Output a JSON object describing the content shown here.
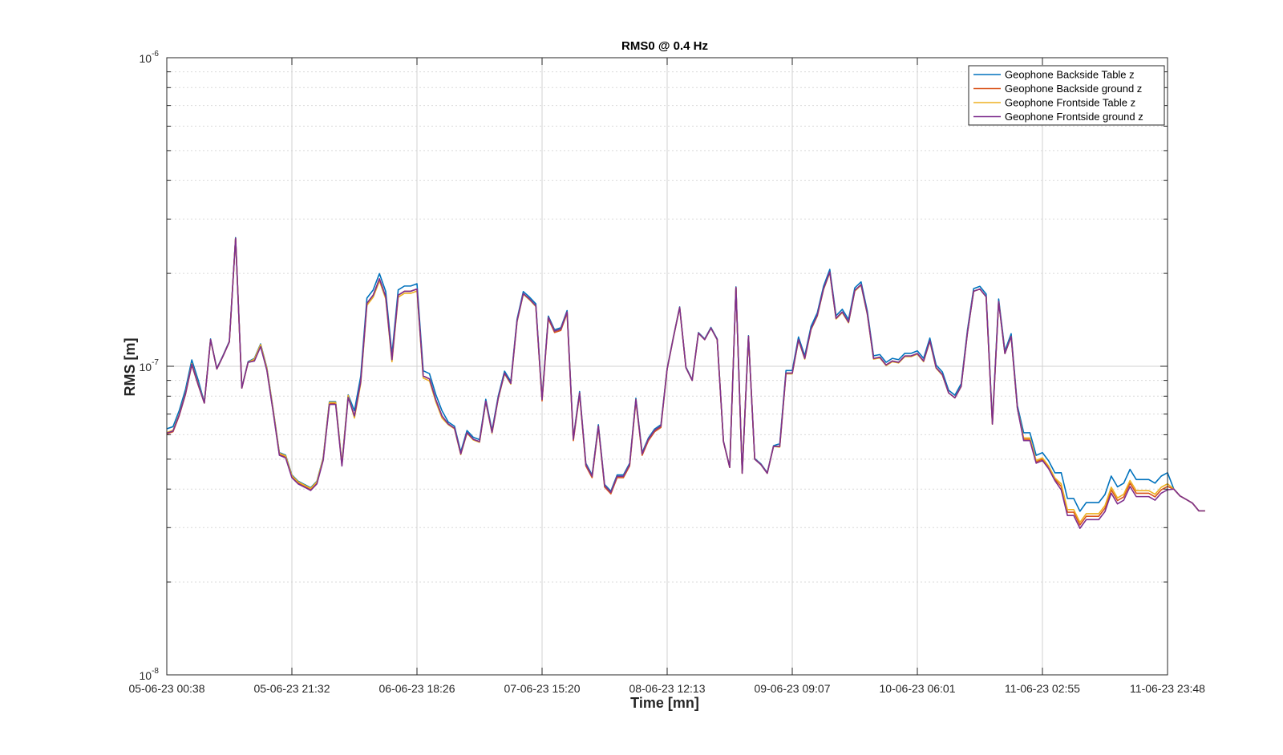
{
  "chart_data": {
    "type": "line",
    "title": "RMS0 @ 0.4 Hz",
    "xlabel": "Time [mn]",
    "ylabel": "RMS [m]",
    "yscale": "log",
    "ylim": [
      1e-08,
      1e-06
    ],
    "xlim": [
      0,
      160
    ],
    "grid": true,
    "legend_position": "top-right",
    "x_ticks": [
      {
        "x": 0,
        "label": "05-06-23 00:38"
      },
      {
        "x": 20,
        "label": "05-06-23 21:32"
      },
      {
        "x": 40,
        "label": "06-06-23 18:26"
      },
      {
        "x": 60,
        "label": "07-06-23 15:20"
      },
      {
        "x": 80,
        "label": "08-06-23 12:13"
      },
      {
        "x": 100,
        "label": "09-06-23 09:07"
      },
      {
        "x": 120,
        "label": "10-06-23 06:01"
      },
      {
        "x": 140,
        "label": "11-06-23 02:55"
      },
      {
        "x": 160,
        "label": "11-06-23 23:48"
      }
    ],
    "y_ticks": [
      {
        "value": 1e-08,
        "base": "10",
        "exp": "-8"
      },
      {
        "value": 1e-07,
        "base": "10",
        "exp": "-7"
      },
      {
        "value": 1e-06,
        "base": "10",
        "exp": "-6"
      }
    ],
    "base_series": [
      0.61,
      0.62,
      0.7,
      0.82,
      1.02,
      0.88,
      0.76,
      1.22,
      0.98,
      1.08,
      1.2,
      2.6,
      0.85,
      1.03,
      1.05,
      1.17,
      0.98,
      0.72,
      0.52,
      0.51,
      0.44,
      0.42,
      0.41,
      0.4,
      0.42,
      0.5,
      0.76,
      0.76,
      0.48,
      0.8,
      0.69,
      0.89,
      1.6,
      1.7,
      1.92,
      1.68,
      1.05,
      1.7,
      1.75,
      1.75,
      1.78,
      0.93,
      0.91,
      0.78,
      0.69,
      0.65,
      0.63,
      0.52,
      0.61,
      0.58,
      0.57,
      0.77,
      0.61,
      0.79,
      0.95,
      0.88,
      1.4,
      1.72,
      1.65,
      1.57,
      0.78,
      1.44,
      1.3,
      1.32,
      1.5,
      0.58,
      0.82,
      0.48,
      0.44,
      0.64,
      0.41,
      0.39,
      0.44,
      0.44,
      0.48,
      0.78,
      0.52,
      0.58,
      0.62,
      0.64,
      0.98,
      1.24,
      1.55,
      0.99,
      0.9,
      1.28,
      1.22,
      1.33,
      1.22,
      0.57,
      0.47,
      1.8,
      0.45,
      1.25,
      0.5,
      0.48,
      0.45,
      0.55,
      0.55,
      0.95,
      0.95,
      1.22,
      1.06,
      1.32,
      1.46,
      1.78,
      2.02,
      1.43,
      1.5,
      1.39,
      1.76,
      1.84,
      1.48,
      1.06,
      1.07,
      1.01,
      1.04,
      1.03,
      1.08,
      1.08,
      1.1,
      1.04,
      1.21,
      0.99,
      0.94,
      0.82,
      0.79,
      0.86,
      1.28,
      1.75,
      1.78,
      1.68,
      0.65,
      1.62,
      1.1,
      1.25,
      0.73,
      0.58,
      0.58,
      0.49,
      0.5,
      0.47,
      0.43,
      0.4,
      0.33,
      0.33,
      0.3,
      0.32,
      0.32,
      0.32,
      0.34,
      0.39,
      0.36,
      0.37,
      0.41,
      0.38,
      0.38,
      0.38,
      0.37,
      0.39,
      0.4,
      0.4,
      0.38,
      0.37,
      0.36,
      0.34,
      0.34
    ],
    "series": [
      {
        "name": "Geophone Backside Table z",
        "color": "#0072BD",
        "offset": [
          0,
          6,
          0.028,
          6,
          14,
          0.005,
          14,
          30,
          0.01,
          30,
          45,
          0.04,
          45,
          60,
          0.015,
          60,
          80,
          0.01,
          80,
          98,
          0.005,
          98,
          125,
          0.02,
          125,
          137,
          0.02,
          137,
          143,
          0.05,
          143,
          161,
          0.13
        ]
      },
      {
        "name": "Geophone Backside ground z",
        "color": "#D95319",
        "offset": [
          0,
          6,
          -0.01,
          6,
          14,
          0,
          14,
          30,
          -0.005,
          30,
          45,
          0,
          45,
          60,
          0,
          60,
          80,
          -0.01,
          80,
          98,
          0,
          98,
          125,
          0,
          125,
          137,
          0,
          137,
          143,
          0,
          143,
          161,
          0.02
        ]
      },
      {
        "name": "Geophone Frontside Table z",
        "color": "#EDB120",
        "offset": [
          0,
          6,
          0,
          6,
          14,
          0,
          14,
          30,
          0.005,
          30,
          45,
          -0.015,
          45,
          60,
          -0.005,
          60,
          80,
          0,
          80,
          98,
          0,
          98,
          125,
          -0.005,
          125,
          137,
          0,
          137,
          143,
          0.01,
          143,
          161,
          0.04
        ]
      },
      {
        "name": "Geophone Frontside ground z",
        "color": "#7E2F8E",
        "offset": [
          0,
          6,
          -0.005,
          6,
          14,
          0,
          14,
          30,
          -0.01,
          30,
          45,
          0,
          45,
          60,
          0,
          60,
          80,
          0,
          80,
          98,
          0,
          98,
          125,
          0,
          125,
          137,
          0,
          137,
          143,
          -0.01,
          143,
          161,
          -0.005
        ]
      }
    ]
  }
}
